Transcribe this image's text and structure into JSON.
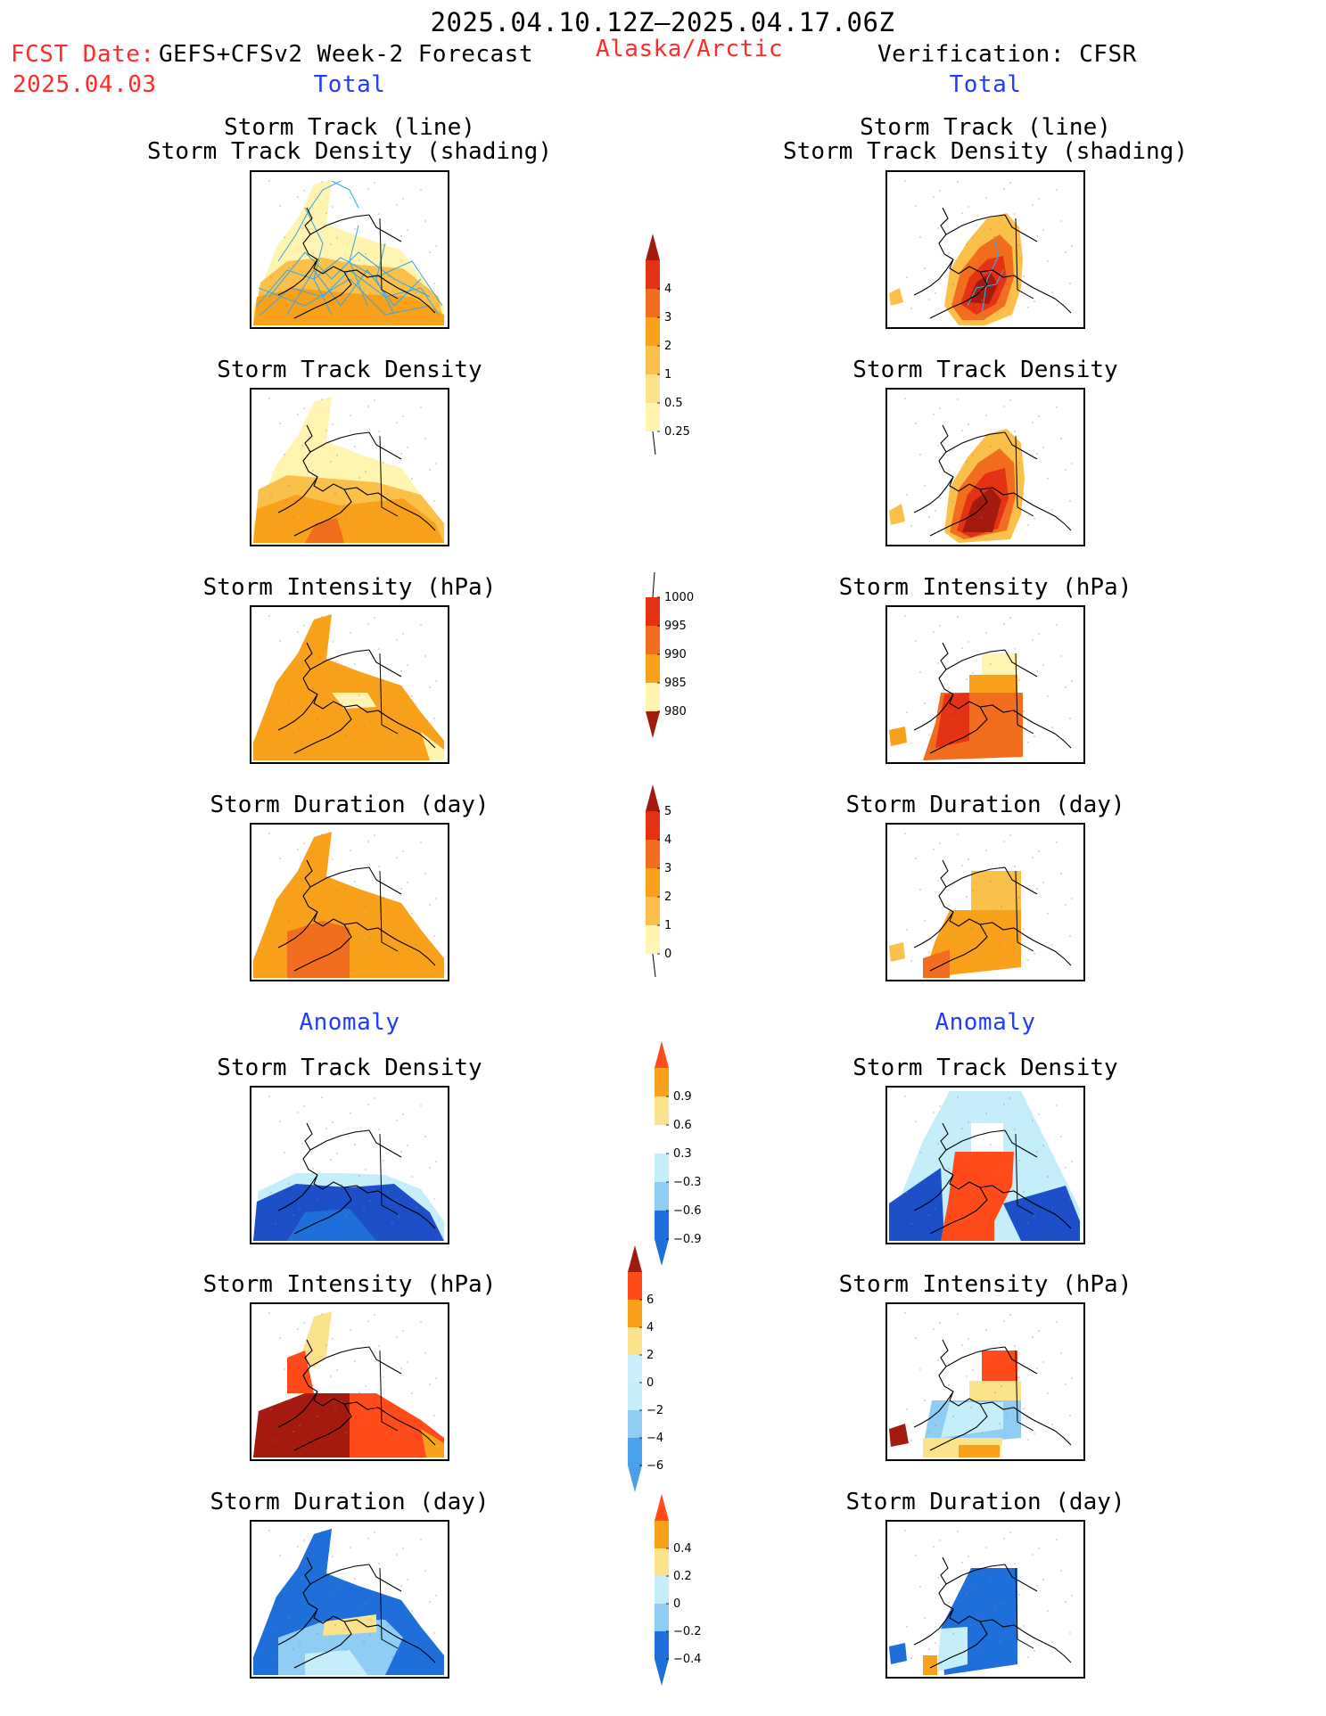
{
  "header": {
    "period": "2025.04.10.12Z–2025.04.17.06Z",
    "fcst_label": "FCST Date:",
    "fcst_model": "GEFS+CFSv2 Week-2 Forecast",
    "fcst_date": "2025.04.03",
    "region": "Alaska/Arctic",
    "verification": "Verification: CFSR",
    "left_total": "Total",
    "right_total": "Total",
    "left_anomaly": "Anomaly",
    "right_anomaly": "Anomaly"
  },
  "panels": {
    "track_line_1": "Storm Track (line)",
    "track_line_2": "Storm Track Density (shading)",
    "track_density": "Storm Track Density",
    "intensity": "Storm Intensity (hPa)",
    "duration": "Storm Duration (day)"
  },
  "colorbars": {
    "density": [
      "0.25",
      "0.5",
      "1",
      "2",
      "3",
      "4"
    ],
    "intensity": [
      "1000",
      "995",
      "990",
      "985",
      "980"
    ],
    "duration": [
      "0",
      "1",
      "2",
      "3",
      "4",
      "5"
    ],
    "anom_density": [
      "0.9",
      "0.6",
      "0.3",
      "−0.3",
      "−0.6",
      "−0.9"
    ],
    "anom_intensity": [
      "6",
      "4",
      "2",
      "0",
      "−2",
      "−4",
      "−6"
    ],
    "anom_duration": [
      "0.4",
      "0.2",
      "0",
      "−0.2",
      "−0.4"
    ]
  },
  "colors": {
    "warm": [
      "#ffffff",
      "#fff5b0",
      "#fde28c",
      "#fbc04a",
      "#f9a11b",
      "#f26d1e",
      "#e53214",
      "#a41a0f"
    ],
    "anom_pos": [
      "#ffffff",
      "#fde28c",
      "#f9a11b",
      "#ff4a1a",
      "#a41a0f"
    ],
    "anom_neg": [
      "#ffffff",
      "#c4eefa",
      "#8fcdf5",
      "#4aa0ea",
      "#1e6fd9",
      "#1d4fc8"
    ],
    "track_line": "#3fa9e0"
  },
  "chart_data": {
    "type": "heatmap",
    "title": "2025.04.10.12Z–2025.04.17.06Z",
    "region": "Alaska/Arctic",
    "columns": [
      "GEFS+CFSv2 Week-2 Forecast",
      "Verification: CFSR"
    ],
    "rows": [
      {
        "section": "Total",
        "variable": "Storm Track (line) / Storm Track Density (shading)",
        "levels": [
          0.25,
          0.5,
          1,
          2,
          3,
          4
        ]
      },
      {
        "section": "Total",
        "variable": "Storm Track Density",
        "levels": [
          0.25,
          0.5,
          1,
          2,
          3,
          4
        ]
      },
      {
        "section": "Total",
        "variable": "Storm Intensity (hPa)",
        "levels": [
          1000,
          995,
          990,
          985,
          980
        ]
      },
      {
        "section": "Total",
        "variable": "Storm Duration (day)",
        "levels": [
          0,
          1,
          2,
          3,
          4,
          5
        ]
      },
      {
        "section": "Anomaly",
        "variable": "Storm Track Density",
        "levels": [
          -0.9,
          -0.6,
          -0.3,
          0.3,
          0.6,
          0.9
        ]
      },
      {
        "section": "Anomaly",
        "variable": "Storm Intensity (hPa)",
        "levels": [
          -6,
          -4,
          -2,
          0,
          2,
          4,
          6
        ]
      },
      {
        "section": "Anomaly",
        "variable": "Storm Duration (day)",
        "levels": [
          -0.4,
          -0.2,
          0,
          0.2,
          0.4
        ]
      }
    ]
  }
}
